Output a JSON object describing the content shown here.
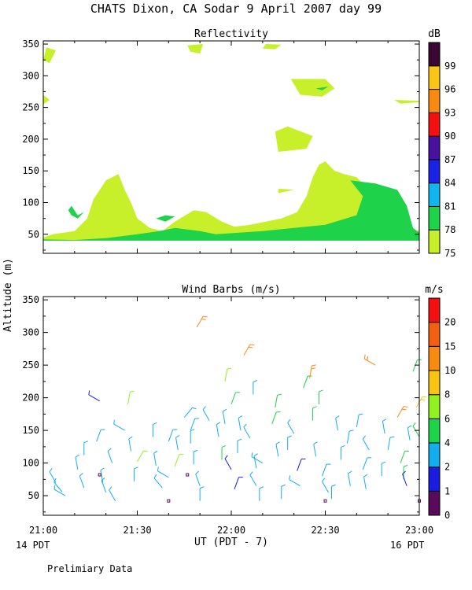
{
  "title": "CHATS Dixon, CA  Sodar   9 April 2007  day  99",
  "footer_note": "Prelimiary Data",
  "shared_axes": {
    "ylabel": "Altitude (m)",
    "xlabel": "UT  (PDT - 7)",
    "x_ticks": [
      "21:00",
      "21:30",
      "22:00",
      "22:30",
      "23:00"
    ],
    "x_range": [
      "21:00",
      "23:00"
    ],
    "left_local_label": "14 PDT",
    "right_local_label": "16 PDT"
  },
  "chart_data": [
    {
      "type": "heatmap",
      "title": "Reflectivity",
      "colorbar_unit": "dB",
      "colorbar_ticks": [
        75,
        78,
        81,
        84,
        87,
        90,
        93,
        96,
        99
      ],
      "levels": [
        {
          "from": 75,
          "to": 78,
          "color": "#c8f02a"
        },
        {
          "from": 78,
          "to": 81,
          "color": "#1ed24a"
        },
        {
          "from": 81,
          "to": 84,
          "color": "#12b6ee"
        },
        {
          "from": 84,
          "to": 87,
          "color": "#1a22e6"
        },
        {
          "from": 87,
          "to": 90,
          "color": "#4a10a0"
        },
        {
          "from": 90,
          "to": 93,
          "color": "#f41010"
        },
        {
          "from": 93,
          "to": 96,
          "color": "#f88a12"
        },
        {
          "from": 96,
          "to": 99,
          "color": "#f8c416"
        },
        {
          "from": 99,
          "to": 102,
          "color": "#3a0632"
        }
      ],
      "ylim": [
        20,
        355
      ],
      "y_ticks": [
        50,
        100,
        150,
        200,
        250,
        300,
        350
      ],
      "regions_time_altitude": [
        {
          "level": 75,
          "points": [
            [
              0,
              45
            ],
            [
              3,
              50
            ],
            [
              10,
              55
            ],
            [
              14,
              75
            ],
            [
              16,
              105
            ],
            [
              20,
              135
            ],
            [
              24,
              145
            ],
            [
              26,
              120
            ],
            [
              28,
              100
            ],
            [
              30,
              75
            ],
            [
              34,
              60
            ],
            [
              38,
              55
            ],
            [
              42,
              70
            ],
            [
              48,
              88
            ],
            [
              52,
              85
            ],
            [
              57,
              70
            ],
            [
              61,
              62
            ],
            [
              66,
              65
            ],
            [
              71,
              70
            ],
            [
              76,
              75
            ],
            [
              81,
              85
            ],
            [
              84,
              110
            ],
            [
              86,
              140
            ],
            [
              88,
              160
            ],
            [
              90,
              165
            ],
            [
              93,
              150
            ],
            [
              96,
              145
            ],
            [
              100,
              140
            ],
            [
              104,
              120
            ],
            [
              106,
              95
            ],
            [
              108,
              70
            ],
            [
              111,
              60
            ],
            [
              114,
              55
            ],
            [
              117,
              50
            ],
            [
              119,
              55
            ],
            [
              124,
              65
            ],
            [
              128,
              70
            ],
            [
              132,
              65
            ],
            [
              136,
              60
            ],
            [
              138,
              45
            ],
            [
              142,
              65
            ],
            [
              146,
              75
            ],
            [
              150,
              80
            ],
            [
              150,
              40
            ],
            [
              0,
              40
            ]
          ]
        },
        {
          "level": 75,
          "points": [
            [
              0,
              325
            ],
            [
              1,
              345
            ],
            [
              4,
              340
            ],
            [
              2,
              320
            ]
          ]
        },
        {
          "level": 75,
          "points": [
            [
              0,
              270
            ],
            [
              2,
              262
            ],
            [
              0,
              255
            ]
          ]
        },
        {
          "level": 75,
          "points": [
            [
              46,
              348
            ],
            [
              51,
              350
            ],
            [
              50,
              335
            ],
            [
              47,
              338
            ]
          ]
        },
        {
          "level": 75,
          "points": [
            [
              71,
              350
            ],
            [
              76,
              349
            ],
            [
              74,
              342
            ],
            [
              70,
              343
            ]
          ]
        },
        {
          "level": 75,
          "points": [
            [
              74,
              212
            ],
            [
              78,
              220
            ],
            [
              86,
              205
            ],
            [
              84,
              185
            ],
            [
              75,
              180
            ]
          ]
        },
        {
          "level": 75,
          "points": [
            [
              79,
              295
            ],
            [
              90,
              295
            ],
            [
              93,
              280
            ],
            [
              89,
              267
            ],
            [
              82,
              270
            ]
          ]
        },
        {
          "level": 75,
          "points": [
            [
              112,
              262
            ],
            [
              124,
              260
            ],
            [
              114,
              256
            ]
          ]
        },
        {
          "level": 75,
          "points": [
            [
              75,
              122
            ],
            [
              80,
              120
            ],
            [
              77,
              117
            ],
            [
              75,
              115
            ]
          ]
        },
        {
          "level": 78,
          "points": [
            [
              0,
              42
            ],
            [
              10,
              41
            ],
            [
              20,
              44
            ],
            [
              30,
              50
            ],
            [
              37,
              55
            ],
            [
              42,
              60
            ],
            [
              50,
              55
            ],
            [
              55,
              50
            ],
            [
              70,
              55
            ],
            [
              90,
              65
            ],
            [
              100,
              80
            ],
            [
              102,
              110
            ],
            [
              98,
              135
            ],
            [
              106,
              130
            ],
            [
              113,
              120
            ],
            [
              116,
              95
            ],
            [
              118,
              60
            ],
            [
              122,
              45
            ],
            [
              134,
              50
            ],
            [
              138,
              60
            ],
            [
              146,
              40
            ],
            [
              0,
              40
            ]
          ]
        },
        {
          "level": 78,
          "points": [
            [
              9,
              95
            ],
            [
              11,
              80
            ],
            [
              13,
              85
            ],
            [
              11,
              75
            ],
            [
              9,
              80
            ],
            [
              8,
              88
            ]
          ]
        },
        {
          "level": 78,
          "points": [
            [
              36,
              75
            ],
            [
              39,
              70
            ],
            [
              42,
              78
            ],
            [
              39,
              80
            ]
          ]
        },
        {
          "level": 78,
          "points": [
            [
              87,
              280
            ],
            [
              91,
              283
            ],
            [
              89,
              277
            ]
          ]
        },
        {
          "level": 81,
          "points": [
            [
              128,
              40
            ],
            [
              134,
              42
            ],
            [
              137,
              45
            ],
            [
              140,
              40
            ]
          ]
        }
      ]
    },
    {
      "type": "scatter",
      "title": "Wind Barbs (m/s)",
      "colorbar_unit": "m/s",
      "colorbar_ticks": [
        0,
        1,
        2,
        4,
        6,
        8,
        10,
        15,
        20
      ],
      "levels": [
        {
          "from": 0,
          "to": 1,
          "color": "#5a0a5a"
        },
        {
          "from": 1,
          "to": 2,
          "color": "#1c1ce0"
        },
        {
          "from": 2,
          "to": 4,
          "color": "#12aef0"
        },
        {
          "from": 4,
          "to": 6,
          "color": "#1ed24a"
        },
        {
          "from": 6,
          "to": 8,
          "color": "#90f020"
        },
        {
          "from": 8,
          "to": 10,
          "color": "#f8c414"
        },
        {
          "from": 10,
          "to": 15,
          "color": "#f88a12"
        },
        {
          "from": 15,
          "to": 20,
          "color": "#f25e12"
        },
        {
          "from": 20,
          "to": 25,
          "color": "#f41010"
        }
      ],
      "ylim": [
        20,
        355
      ],
      "y_ticks": [
        50,
        100,
        150,
        200,
        250,
        300,
        350
      ],
      "barbs_time_altitude_dir_speed": [
        [
          4,
          70,
          330,
          3
        ],
        [
          6,
          56,
          320,
          3
        ],
        [
          7,
          50,
          300,
          3
        ],
        [
          11,
          90,
          350,
          3
        ],
        [
          13,
          62,
          340,
          3
        ],
        [
          13,
          112,
          0,
          3
        ],
        [
          17,
          133,
          20,
          3
        ],
        [
          18,
          195,
          300,
          1
        ],
        [
          19,
          70,
          350,
          3
        ],
        [
          20,
          55,
          340,
          3
        ],
        [
          18,
          82,
          0,
          0.5
        ],
        [
          22,
          100,
          340,
          3
        ],
        [
          23,
          42,
          330,
          3
        ],
        [
          26,
          150,
          300,
          3
        ],
        [
          28,
          118,
          350,
          3
        ],
        [
          29,
          72,
          0,
          3
        ],
        [
          27,
          190,
          10,
          6
        ],
        [
          30,
          102,
          30,
          6
        ],
        [
          35,
          140,
          0,
          3
        ],
        [
          36,
          96,
          350,
          3
        ],
        [
          38,
          62,
          320,
          3
        ],
        [
          40,
          78,
          300,
          3
        ],
        [
          40,
          133,
          20,
          3
        ],
        [
          42,
          95,
          20,
          6
        ],
        [
          43,
          120,
          350,
          3
        ],
        [
          47,
          130,
          0,
          3
        ],
        [
          48,
          98,
          0,
          3
        ],
        [
          47,
          150,
          20,
          3
        ],
        [
          49,
          308,
          30,
          12
        ],
        [
          50,
          65,
          340,
          3
        ],
        [
          50,
          42,
          0,
          3
        ],
        [
          45,
          170,
          40,
          3
        ],
        [
          53,
          165,
          330,
          3
        ],
        [
          46,
          82,
          0,
          0.5
        ],
        [
          56,
          140,
          350,
          3
        ],
        [
          57,
          105,
          0,
          4
        ],
        [
          60,
          90,
          330,
          1
        ],
        [
          61,
          60,
          20,
          1
        ],
        [
          60,
          190,
          20,
          4
        ],
        [
          58,
          225,
          10,
          6
        ],
        [
          58,
          160,
          350,
          3
        ],
        [
          64,
          265,
          30,
          10
        ],
        [
          62,
          115,
          0,
          3
        ],
        [
          63,
          150,
          350,
          3
        ],
        [
          66,
          138,
          330,
          3
        ],
        [
          67,
          205,
          0,
          3
        ],
        [
          68,
          92,
          350,
          3
        ],
        [
          68,
          65,
          330,
          3
        ],
        [
          69,
          42,
          0,
          3
        ],
        [
          70,
          100,
          300,
          3
        ],
        [
          73,
          160,
          20,
          4
        ],
        [
          74,
          185,
          10,
          4
        ],
        [
          75,
          110,
          350,
          3
        ],
        [
          76,
          45,
          0,
          3
        ],
        [
          78,
          120,
          0,
          3
        ],
        [
          80,
          145,
          330,
          3
        ],
        [
          81,
          88,
          20,
          1
        ],
        [
          82,
          65,
          300,
          3
        ],
        [
          83,
          215,
          20,
          4
        ],
        [
          85,
          230,
          10,
          10
        ],
        [
          86,
          165,
          0,
          4
        ],
        [
          87,
          110,
          350,
          3
        ],
        [
          88,
          190,
          0,
          4
        ],
        [
          89,
          80,
          20,
          3
        ],
        [
          91,
          55,
          330,
          3
        ],
        [
          92,
          45,
          0,
          3
        ],
        [
          94,
          150,
          350,
          3
        ],
        [
          95,
          105,
          0,
          3
        ],
        [
          97,
          130,
          10,
          3
        ],
        [
          98,
          65,
          350,
          3
        ],
        [
          100,
          155,
          10,
          3
        ],
        [
          102,
          90,
          20,
          3
        ],
        [
          103,
          60,
          350,
          3
        ],
        [
          104,
          120,
          330,
          3
        ],
        [
          106,
          250,
          300,
          10
        ],
        [
          108,
          80,
          0,
          3
        ],
        [
          109,
          145,
          350,
          3
        ],
        [
          110,
          120,
          10,
          3
        ],
        [
          113,
          170,
          30,
          10
        ],
        [
          114,
          100,
          20,
          4
        ],
        [
          115,
          75,
          0,
          4
        ],
        [
          116,
          65,
          340,
          1
        ],
        [
          117,
          135,
          350,
          3
        ],
        [
          118,
          240,
          20,
          4
        ],
        [
          119,
          185,
          30,
          8
        ],
        [
          120,
          140,
          330,
          4
        ],
        [
          121,
          270,
          300,
          20
        ],
        [
          122,
          330,
          20,
          6
        ],
        [
          123,
          120,
          0,
          4
        ],
        [
          124,
          75,
          330,
          1
        ],
        [
          124,
          165,
          350,
          3
        ],
        [
          125,
          185,
          0,
          1
        ],
        [
          126,
          105,
          20,
          3
        ],
        [
          127,
          55,
          340,
          3
        ],
        [
          128,
          90,
          0,
          4
        ],
        [
          129,
          150,
          20,
          3
        ],
        [
          130,
          110,
          350,
          3
        ],
        [
          131,
          65,
          300,
          3
        ],
        [
          133,
          140,
          0,
          3
        ],
        [
          135,
          180,
          10,
          3
        ],
        [
          137,
          120,
          350,
          3
        ],
        [
          138,
          95,
          20,
          3
        ],
        [
          141,
          60,
          0,
          3
        ],
        [
          143,
          80,
          330,
          1
        ],
        [
          146,
          60,
          340,
          3
        ],
        [
          148,
          90,
          0,
          3
        ],
        [
          40,
          42,
          0,
          0.5
        ],
        [
          90,
          42,
          0,
          0.5
        ],
        [
          120,
          42,
          0,
          0.5
        ]
      ]
    }
  ]
}
